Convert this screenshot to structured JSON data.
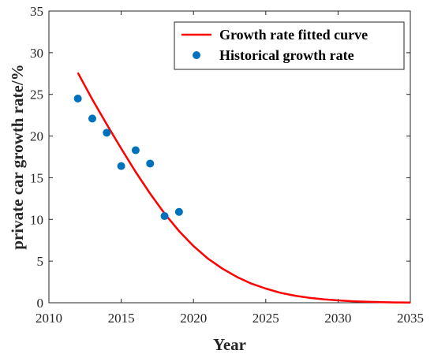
{
  "chart_data": {
    "type": "line",
    "title": "",
    "xlabel": "Year",
    "ylabel": "private car growth rate/%",
    "xlim": [
      2010,
      2035
    ],
    "ylim": [
      0,
      35
    ],
    "xticks": [
      2010,
      2015,
      2020,
      2025,
      2030,
      2035
    ],
    "yticks": [
      0,
      5,
      10,
      15,
      20,
      25,
      30,
      35
    ],
    "xtick_labels": [
      "2010",
      "2015",
      "2020",
      "2025",
      "2030",
      "2035"
    ],
    "ytick_labels": [
      "0",
      "5",
      "10",
      "15",
      "20",
      "25",
      "30",
      "35"
    ],
    "grid": false,
    "legend_position": "top-right",
    "series": [
      {
        "name": "Growth rate fitted curve",
        "kind": "line",
        "color": "#ff0000",
        "x": [
          2012,
          2013,
          2014,
          2015,
          2016,
          2017,
          2018,
          2019,
          2020,
          2021,
          2022,
          2023,
          2024,
          2025,
          2026,
          2027,
          2028,
          2029,
          2030,
          2031,
          2032,
          2033,
          2034,
          2035
        ],
        "y": [
          27.6,
          24.4,
          21.4,
          18.5,
          15.7,
          13.1,
          10.7,
          8.6,
          6.8,
          5.3,
          4.1,
          3.1,
          2.3,
          1.7,
          1.2,
          0.85,
          0.6,
          0.42,
          0.28,
          0.18,
          0.11,
          0.07,
          0.04,
          0.02
        ]
      },
      {
        "name": "Historical growth rate",
        "kind": "scatter",
        "color": "#0072bd",
        "x": [
          2012,
          2013,
          2014,
          2015,
          2016,
          2017,
          2018,
          2019
        ],
        "y": [
          24.5,
          22.1,
          20.4,
          16.4,
          18.3,
          16.7,
          10.4,
          10.9
        ]
      }
    ]
  }
}
